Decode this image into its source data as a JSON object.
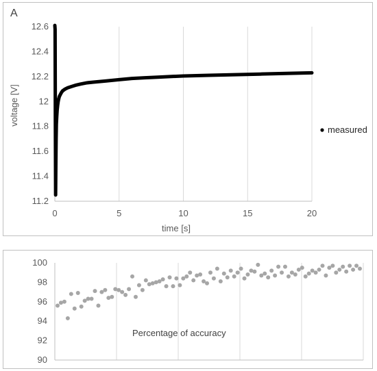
{
  "chart_data": [
    {
      "type": "line",
      "panel_label": "A",
      "xlabel": "time [s]",
      "ylabel": "voltage [V]",
      "xlim": [
        0,
        20
      ],
      "ylim": [
        11.2,
        12.6
      ],
      "x_ticks": [
        "0",
        "5",
        "10",
        "15",
        "20"
      ],
      "y_ticks": [
        "11.2",
        "11.4",
        "11.6",
        "11.8",
        "12",
        "12.2",
        "12.4",
        "12.6"
      ],
      "grid": "vertical",
      "legend_position": "right",
      "series": [
        {
          "name": "measured",
          "color": "#000000",
          "x": [
            0,
            0.02,
            0.04,
            0.06,
            0.08,
            0.1,
            0.12,
            0.15,
            0.18,
            0.22,
            0.26,
            0.3,
            0.35,
            0.4,
            0.5,
            0.6,
            0.8,
            1.0,
            1.3,
            1.6,
            2.0,
            2.5,
            3,
            4,
            5,
            6,
            7,
            8,
            10,
            12,
            14,
            16,
            18,
            20
          ],
          "y": [
            12.61,
            12.58,
            11.84,
            11.25,
            11.5,
            11.7,
            11.82,
            11.88,
            11.93,
            11.97,
            12.0,
            12.02,
            12.04,
            12.05,
            12.07,
            12.085,
            12.1,
            12.11,
            12.12,
            12.13,
            12.14,
            12.15,
            12.155,
            12.165,
            12.175,
            12.185,
            12.19,
            12.195,
            12.205,
            12.21,
            12.215,
            12.22,
            12.225,
            12.23
          ]
        }
      ]
    },
    {
      "type": "scatter",
      "annotation": "Percentage of accuracy",
      "ylim": [
        90,
        100
      ],
      "y_ticks": [
        "90",
        "92",
        "94",
        "96",
        "98",
        "100"
      ],
      "x_count": 90,
      "grid": "vertical",
      "series": [
        {
          "color": "#a6a6a6",
          "y": [
            95.6,
            95.9,
            96.0,
            94.3,
            96.8,
            95.3,
            96.9,
            95.5,
            96.1,
            96.3,
            96.3,
            97.1,
            95.6,
            97.0,
            97.2,
            96.4,
            96.5,
            97.3,
            97.2,
            97.0,
            96.7,
            97.3,
            98.6,
            96.5,
            97.7,
            97.2,
            98.2,
            97.8,
            97.9,
            98.0,
            98.1,
            98.3,
            97.6,
            98.5,
            97.6,
            98.4,
            97.7,
            98.4,
            98.6,
            99.0,
            98.2,
            98.7,
            98.8,
            98.1,
            97.9,
            99.0,
            98.4,
            99.4,
            98.1,
            98.9,
            98.5,
            99.2,
            98.6,
            99.0,
            99.4,
            98.4,
            98.8,
            99.2,
            99.1,
            99.8,
            98.7,
            98.9,
            98.5,
            99.2,
            98.7,
            99.6,
            99.0,
            99.6,
            98.6,
            99.0,
            98.8,
            99.3,
            99.5,
            98.6,
            98.9,
            99.2,
            99.0,
            99.3,
            99.7,
            98.7,
            99.5,
            99.7,
            99.0,
            99.3,
            99.6,
            99.1,
            99.7,
            99.3,
            99.7,
            99.4
          ]
        }
      ]
    }
  ]
}
